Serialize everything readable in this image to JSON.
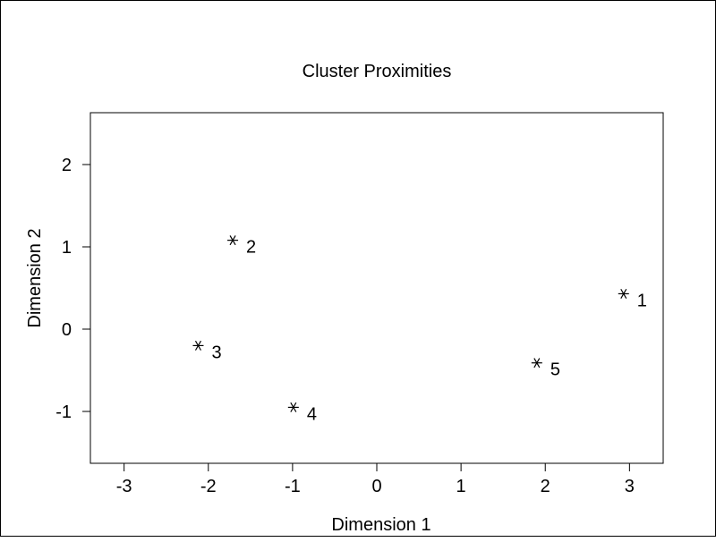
{
  "chart_data": {
    "type": "scatter",
    "title": "Cluster Proximities",
    "xlabel": "Dimension 1",
    "ylabel": "Dimension 2",
    "xlim": [
      -3.4,
      3.4
    ],
    "ylim": [
      -1.63,
      2.63
    ],
    "xticks": [
      -3,
      -2,
      -1,
      0,
      1,
      2,
      3
    ],
    "yticks": [
      -1,
      0,
      1,
      2
    ],
    "marker": "asterisk",
    "grid": false,
    "points": [
      {
        "label": "1",
        "x": 2.93,
        "y": 0.43
      },
      {
        "label": "2",
        "x": -1.71,
        "y": 1.08
      },
      {
        "label": "3",
        "x": -2.12,
        "y": -0.2
      },
      {
        "label": "4",
        "x": -0.99,
        "y": -0.95
      },
      {
        "label": "5",
        "x": 1.9,
        "y": -0.41
      }
    ]
  }
}
